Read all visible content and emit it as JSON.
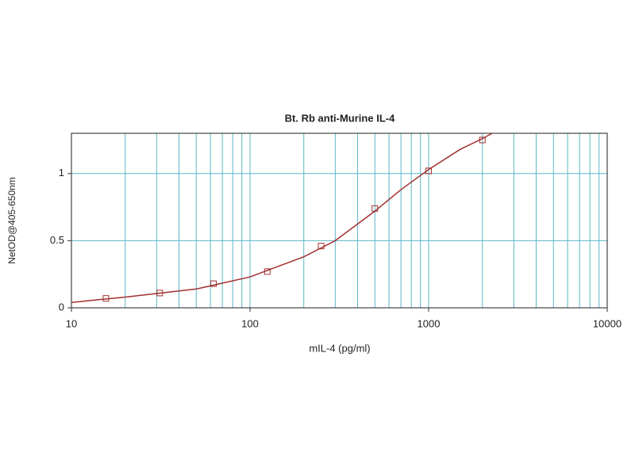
{
  "chart_data": {
    "type": "scatter",
    "title": "Bt. Rb anti-Murine IL-4",
    "x_label": "mIL-4 (pg/ml)",
    "y_label": "NetOD@405-650nm",
    "x_scale": "log",
    "xlim": [
      10,
      10000
    ],
    "xticks": [
      10,
      100,
      1000,
      10000
    ],
    "xgrid": [
      20,
      30,
      40,
      50,
      60,
      70,
      80,
      90,
      200,
      300,
      400,
      500,
      600,
      700,
      800,
      900,
      2000,
      3000,
      4000,
      5000,
      6000,
      7000,
      8000,
      9000
    ],
    "ylim": [
      0,
      1.3
    ],
    "yticks": [
      0,
      0.5,
      1
    ],
    "grid": true,
    "grid_color": "#5cb6c8",
    "series": [
      {
        "type": "scatter",
        "color": "#a23030",
        "x": [
          15.6,
          31.25,
          62.5,
          125,
          250,
          500,
          1000,
          2000
        ],
        "values": [
          0.07,
          0.11,
          0.18,
          0.27,
          0.46,
          0.74,
          1.02,
          1.25
        ]
      },
      {
        "type": "line",
        "color": "#a23030",
        "x": [
          10,
          20,
          50,
          100,
          200,
          300,
          500,
          700,
          1000,
          1500,
          2000,
          2270
        ],
        "values": [
          0.04,
          0.08,
          0.14,
          0.23,
          0.38,
          0.5,
          0.72,
          0.88,
          1.03,
          1.18,
          1.26,
          1.3
        ]
      }
    ]
  }
}
